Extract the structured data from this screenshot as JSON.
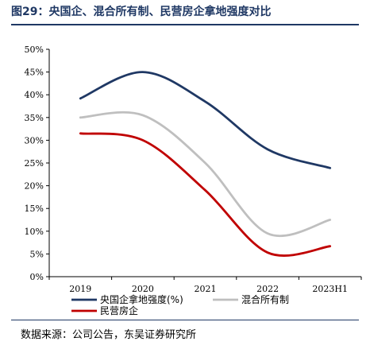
{
  "figure": {
    "title": "图29：央国企、混合所有制、民营房企拿地强度对比",
    "source": "数据来源：公司公告，东吴证券研究所"
  },
  "colors": {
    "title": "#1f3864",
    "series_navy": "#1f3864",
    "series_gray": "#bfbfbf",
    "series_red": "#c00000"
  },
  "chart_data": {
    "type": "line",
    "title": "",
    "xlabel": "",
    "ylabel": "",
    "categories": [
      "2019",
      "2020",
      "2021",
      "2022",
      "2023H1"
    ],
    "ylim": [
      0,
      50
    ],
    "yticks": [
      "0%",
      "5%",
      "10%",
      "15%",
      "20%",
      "25%",
      "30%",
      "35%",
      "40%",
      "45%",
      "50%"
    ],
    "grid": false,
    "legend_position": "bottom",
    "series": [
      {
        "name": "央国企拿地强度(%)",
        "color": "#1f3864",
        "values": [
          39.2,
          45.0,
          38.5,
          28.0,
          23.9
        ]
      },
      {
        "name": "混合所有制",
        "color": "#bfbfbf",
        "values": [
          35.0,
          35.5,
          25.0,
          9.5,
          12.5
        ]
      },
      {
        "name": "民营房企",
        "color": "#c00000",
        "values": [
          31.5,
          30.0,
          19.0,
          5.3,
          6.7
        ]
      }
    ]
  }
}
